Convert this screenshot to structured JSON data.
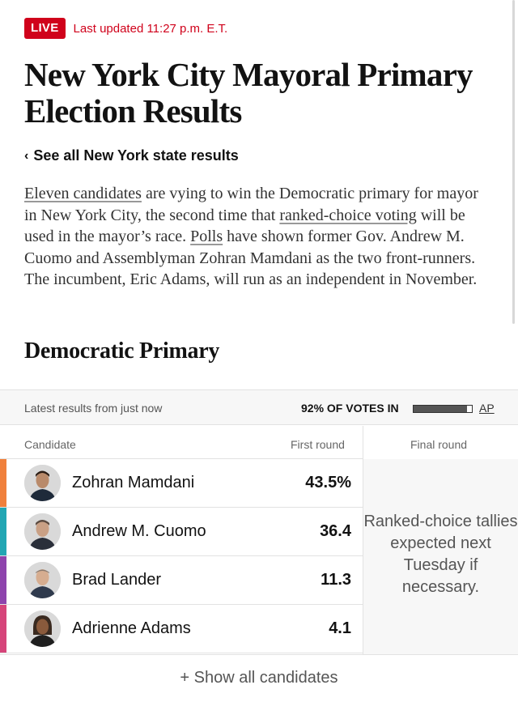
{
  "live": {
    "badge": "LIVE",
    "updated": "Last updated 11:27 p.m. E.T."
  },
  "headline": "New York City Mayoral Primary Election Results",
  "state_link": {
    "chevron": "‹",
    "label": "See all New York state results"
  },
  "intro": {
    "link1": "Eleven candidates",
    "text1": " are vying to win the Democratic primary for mayor in New York City, the second time that ",
    "link2": "ranked-choice voting",
    "text2": " will be used in the mayor’s race. ",
    "link3": "Polls",
    "text3": " have shown former Gov. Andrew M. Cuomo and Assemblyman Zohran Mamdani as the two front-runners. The incumbent, Eric Adams, will run as an independent in November."
  },
  "section_title": "Democratic Primary",
  "results_bar": {
    "latest": "Latest results from just now",
    "votes_in": "92% OF VOTES IN",
    "votes_fraction": 0.92,
    "source": "AP"
  },
  "columns": {
    "candidate": "Candidate",
    "first_round": "First round",
    "final_round": "Final round"
  },
  "final_note": "Ranked-choice tallies expected next Tuesday if necessary.",
  "candidates": [
    {
      "name": "Zohran Mamdani",
      "pct": "43.5%",
      "color": "#f0803c"
    },
    {
      "name": "Andrew M. Cuomo",
      "pct": "36.4",
      "color": "#22a6b3"
    },
    {
      "name": "Brad Lander",
      "pct": "11.3",
      "color": "#8e44ad"
    },
    {
      "name": "Adrienne Adams",
      "pct": "4.1",
      "color": "#d6457a"
    }
  ],
  "show_all": "+ Show all candidates"
}
